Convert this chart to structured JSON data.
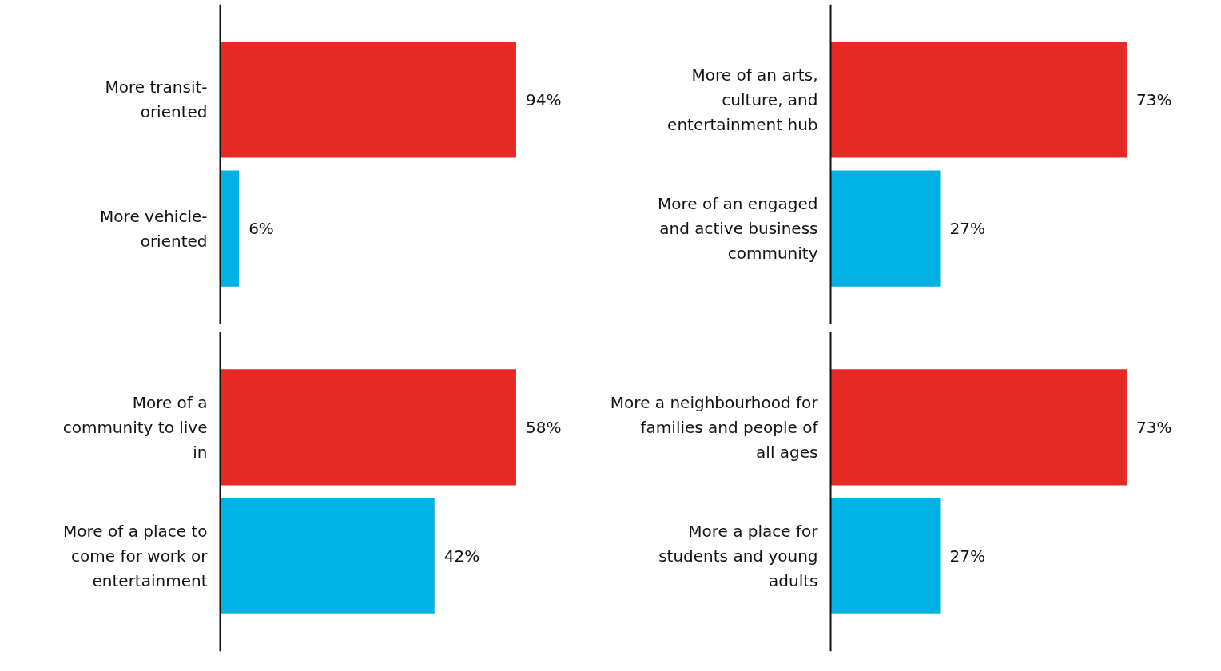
{
  "chart_data": [
    {
      "type": "bar",
      "orientation": "horizontal",
      "categories": [
        "More transit-oriented",
        "More vehicle-oriented"
      ],
      "values": [
        94,
        6
      ],
      "colors": [
        "#e52a26",
        "#00b2e3"
      ],
      "value_labels": [
        "94%",
        "6%"
      ],
      "tick_labels": "y",
      "grid": false
    },
    {
      "type": "bar",
      "orientation": "horizontal",
      "categories": [
        "More of an arts, culture, and entertainment hub",
        "More of an engaged and active business community"
      ],
      "values": [
        73,
        27
      ],
      "colors": [
        "#e52a26",
        "#00b2e3"
      ],
      "value_labels": [
        "73%",
        "27%"
      ],
      "tick_labels": "y",
      "grid": false
    },
    {
      "type": "bar",
      "orientation": "horizontal",
      "categories": [
        "More of a community to live in",
        "More of a place to come for work or entertainment"
      ],
      "values": [
        58,
        42
      ],
      "colors": [
        "#e52a26",
        "#00b2e3"
      ],
      "value_labels": [
        "58%",
        "42%"
      ],
      "tick_labels": "y",
      "grid": false
    },
    {
      "type": "bar",
      "orientation": "horizontal",
      "categories": [
        "More a neighbourhood for families and people of all ages",
        "More a place for students and young adults"
      ],
      "values": [
        73,
        27
      ],
      "colors": [
        "#e52a26",
        "#00b2e3"
      ],
      "value_labels": [
        "73%",
        "27%"
      ],
      "tick_labels": "y",
      "grid": false
    }
  ]
}
